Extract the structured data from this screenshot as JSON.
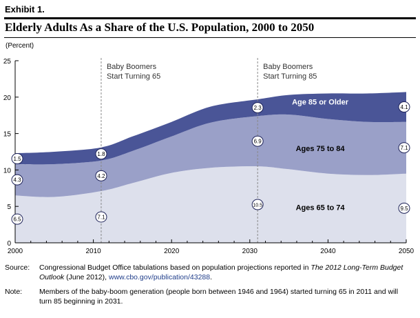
{
  "header": {
    "exhibit": "Exhibit 1.",
    "title": "Elderly Adults As a Share of the U.S. Population, 2000 to 2050",
    "unit": "(Percent)"
  },
  "colors": {
    "age_65_74": "#dde0ec",
    "age_75_84": "#9aa0c8",
    "age_85_plus": "#4a5597",
    "marker_line": "#888888"
  },
  "chart_data": {
    "type": "area",
    "stacked": true,
    "title": "Elderly Adults As a Share of the U.S. Population, 2000 to 2050",
    "ylabel": "(Percent)",
    "xlabel": "",
    "ylim": [
      0,
      25
    ],
    "xlim": [
      2000,
      2050
    ],
    "xticks": [
      2000,
      2010,
      2020,
      2030,
      2040,
      2050
    ],
    "yticks": [
      0,
      5,
      10,
      15,
      20,
      25
    ],
    "x": [
      2000,
      2005,
      2011,
      2015,
      2020,
      2025,
      2031,
      2035,
      2040,
      2045,
      2050
    ],
    "series": [
      {
        "name": "Ages 65 to 74",
        "values": [
          6.5,
          6.3,
          7.1,
          8.2,
          9.6,
          10.3,
          10.5,
          10.1,
          9.5,
          9.3,
          9.5
        ]
      },
      {
        "name": "Ages 75 to 84",
        "values": [
          4.3,
          4.5,
          4.2,
          4.4,
          5.0,
          6.2,
          6.9,
          7.5,
          7.5,
          7.3,
          7.1
        ]
      },
      {
        "name": "Age 85 or Older",
        "values": [
          1.5,
          1.7,
          1.8,
          2.0,
          2.0,
          2.2,
          2.3,
          2.7,
          3.5,
          3.9,
          4.1
        ]
      }
    ],
    "data_labels": [
      {
        "x": 2000,
        "series": "Ages 65 to 74",
        "value": "6.5"
      },
      {
        "x": 2000,
        "series": "Ages 75 to 84",
        "value": "4.3"
      },
      {
        "x": 2000,
        "series": "Age 85 or Older",
        "value": "1.5"
      },
      {
        "x": 2011,
        "series": "Ages 65 to 74",
        "value": "7.1"
      },
      {
        "x": 2011,
        "series": "Ages 75 to 84",
        "value": "4.2"
      },
      {
        "x": 2011,
        "series": "Age 85 or Older",
        "value": "1.8"
      },
      {
        "x": 2031,
        "series": "Ages 65 to 74",
        "value": "10.5"
      },
      {
        "x": 2031,
        "series": "Ages 75 to 84",
        "value": "6.9"
      },
      {
        "x": 2031,
        "series": "Age 85 or Older",
        "value": "2.3"
      },
      {
        "x": 2050,
        "series": "Ages 65 to 74",
        "value": "9.5"
      },
      {
        "x": 2050,
        "series": "Ages 75 to 84",
        "value": "7.1"
      },
      {
        "x": 2050,
        "series": "Age 85 or Older",
        "value": "4.1"
      }
    ],
    "annotations": [
      {
        "x": 2011,
        "lines": [
          "Baby Boomers",
          "Start Turning 65"
        ]
      },
      {
        "x": 2031,
        "lines": [
          "Baby Boomers",
          "Start Turning 85"
        ]
      }
    ],
    "series_labels": [
      "Age 85 or Older",
      "Ages 75 to 84",
      "Ages 65 to 74"
    ],
    "legend": "none",
    "grid": false
  },
  "footer": {
    "source_label": "Source:",
    "source_text_1": "Congressional Budget Office tabulations based on population projections reported in ",
    "source_italic": "The 2012 Long-Term Budget Outlook",
    "source_text_2": " (June 2012), ",
    "source_link": "www.cbo.gov/publication/43288",
    "source_text_3": ".",
    "note_label": "Note:",
    "note_text": "Members of the baby-boom generation (people born between 1946 and 1964) started turning 65 in 2011 and will turn 85 beginning in 2031."
  }
}
